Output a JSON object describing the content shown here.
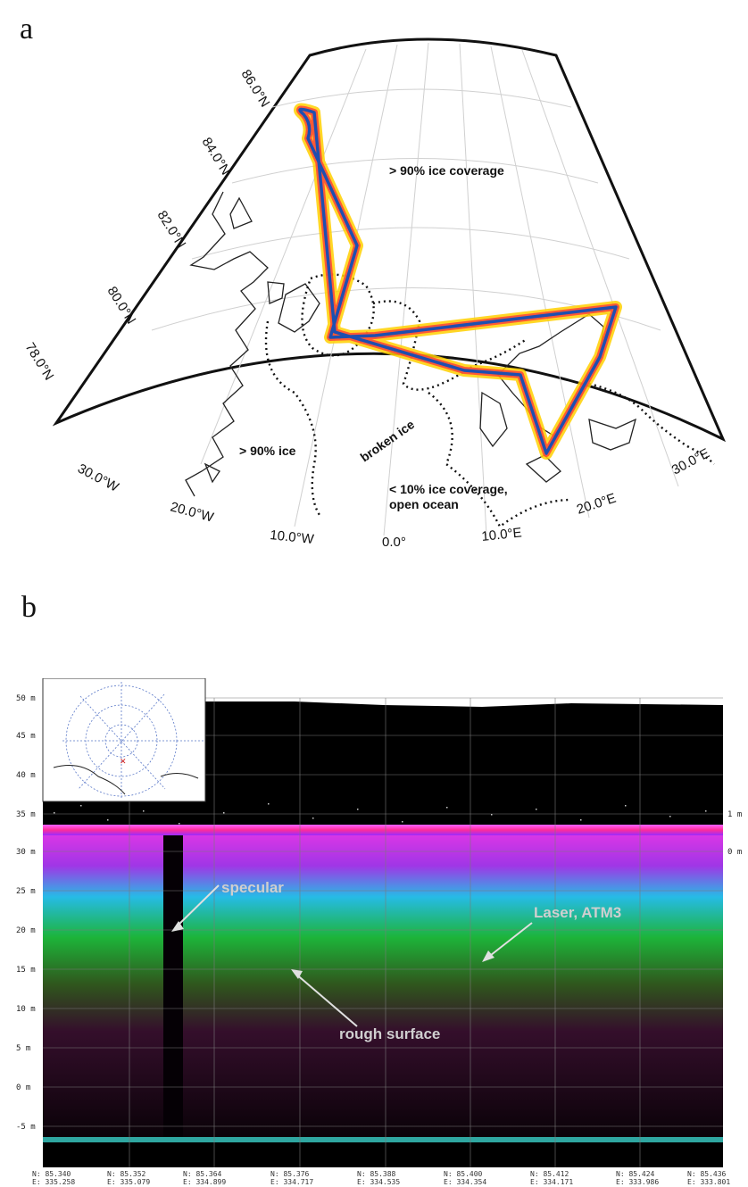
{
  "panel_a": {
    "letter": "a",
    "lat_labels": [
      "86.0°N",
      "84.0°N",
      "82.0°N",
      "80.0°N",
      "78.0°N"
    ],
    "lon_labels": [
      "30.0°W",
      "20.0°W",
      "10.0°W",
      "0.0°",
      "10.0°E",
      "20.0°E",
      "30.0°E"
    ],
    "region_labels": {
      "high_ice": "> 90% ice coverage",
      "west_ice": "> 90% ice",
      "broken": "broken ice",
      "open_ocean_line1": "< 10% ice coverage,",
      "open_ocean_line2": "open ocean"
    }
  },
  "panel_b": {
    "letter": "b",
    "y_tick_labels": [
      "50 m",
      "45 m",
      "40 m",
      "35 m",
      "30 m",
      "25 m",
      "20 m",
      "15 m",
      "10 m",
      "5 m",
      "0 m",
      "-5 m"
    ],
    "right_tick_labels": [
      "1 m",
      "0 m"
    ],
    "annotations": {
      "specular": "specular",
      "laser": "Laser, ATM3",
      "rough": "rough surface"
    },
    "x_labels": [
      {
        "n": "N: 85.340",
        "e": "E: 335.258"
      },
      {
        "n": "N: 85.352",
        "e": "E: 335.079"
      },
      {
        "n": "N: 85.364",
        "e": "E: 334.899"
      },
      {
        "n": "N: 85.376",
        "e": "E: 334.717"
      },
      {
        "n": "N: 85.388",
        "e": "E: 334.535"
      },
      {
        "n": "N: 85.400",
        "e": "E: 334.354"
      },
      {
        "n": "N: 85.412",
        "e": "E: 334.171"
      },
      {
        "n": "N: 85.424",
        "e": "E: 333.986"
      },
      {
        "n": "N: 85.436",
        "e": "E: 333.801"
      }
    ]
  }
}
